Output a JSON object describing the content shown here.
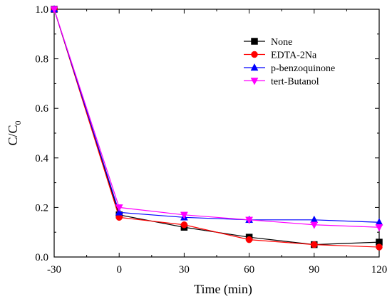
{
  "chart_data": {
    "type": "line",
    "xlabel": "Time (min)",
    "ylabel_main": "C/C",
    "ylabel_sub": "0",
    "x": [
      -30,
      0,
      30,
      60,
      90,
      120
    ],
    "xlim": [
      -30,
      120
    ],
    "ylim": [
      0.0,
      1.0
    ],
    "xticks": [
      "-30",
      "0",
      "30",
      "60",
      "90",
      "120"
    ],
    "yticks": [
      "0.0",
      "0.2",
      "0.4",
      "0.6",
      "0.8",
      "1.0"
    ],
    "grid": false,
    "legend_position": "top-right",
    "series": [
      {
        "name": "None",
        "color": "#000000",
        "marker": "square",
        "values": [
          1.0,
          0.17,
          0.12,
          0.08,
          0.05,
          0.06
        ]
      },
      {
        "name": "EDTA-2Na",
        "color": "#ff0000",
        "marker": "circle",
        "values": [
          1.0,
          0.16,
          0.13,
          0.07,
          0.05,
          0.04
        ]
      },
      {
        "name": "p-benzoquinone",
        "color": "#0000ff",
        "marker": "triangle-up",
        "values": [
          1.0,
          0.18,
          0.16,
          0.15,
          0.15,
          0.14
        ]
      },
      {
        "name": "tert-Butanol",
        "color": "#ff00ff",
        "marker": "triangle-down",
        "values": [
          1.0,
          0.2,
          0.17,
          0.15,
          0.13,
          0.12
        ]
      }
    ]
  }
}
